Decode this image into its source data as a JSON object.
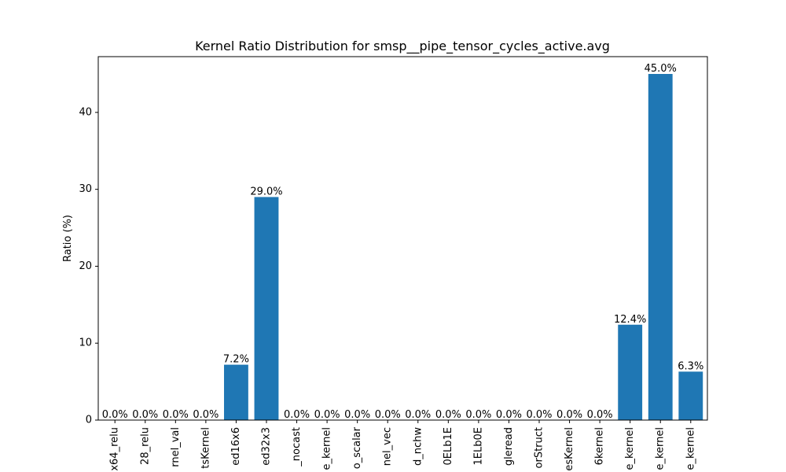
{
  "chart_data": {
    "type": "bar",
    "title": "Kernel Ratio Distribution for smsp__pipe_tensor_cycles_active.avg",
    "xlabel": "",
    "ylabel": "Ratio (%)",
    "ylim": [
      0,
      47.25
    ],
    "yticks": [
      0,
      10,
      20,
      30,
      40
    ],
    "grid": false,
    "color": "#1f77b4",
    "categories": [
      "x64_relu",
      "28_relu",
      "rnel_val",
      "tsKernel",
      "ed16x6",
      "ed32x3",
      "_nocast",
      "e_kernel",
      "o_scalar",
      "nel_vec",
      "d_nchw",
      "0ELb1E",
      "1ELb0E",
      "gleread",
      "orStruct",
      "esKernel",
      "6kernel",
      "e_kernel",
      "e_kernel",
      "e_kernel"
    ],
    "values": [
      0.0,
      0.0,
      0.0,
      0.0,
      7.2,
      29.0,
      0.0,
      0.0,
      0.0,
      0.0,
      0.0,
      0.0,
      0.0,
      0.0,
      0.0,
      0.0,
      0.0,
      12.4,
      45.0,
      6.3
    ],
    "bar_labels": [
      "0.0%",
      "0.0%",
      "0.0%",
      "0.0%",
      "7.2%",
      "29.0%",
      "0.0%",
      "0.0%",
      "0.0%",
      "0.0%",
      "0.0%",
      "0.0%",
      "0.0%",
      "0.0%",
      "0.0%",
      "0.0%",
      "0.0%",
      "12.4%",
      "45.0%",
      "6.3%"
    ]
  }
}
